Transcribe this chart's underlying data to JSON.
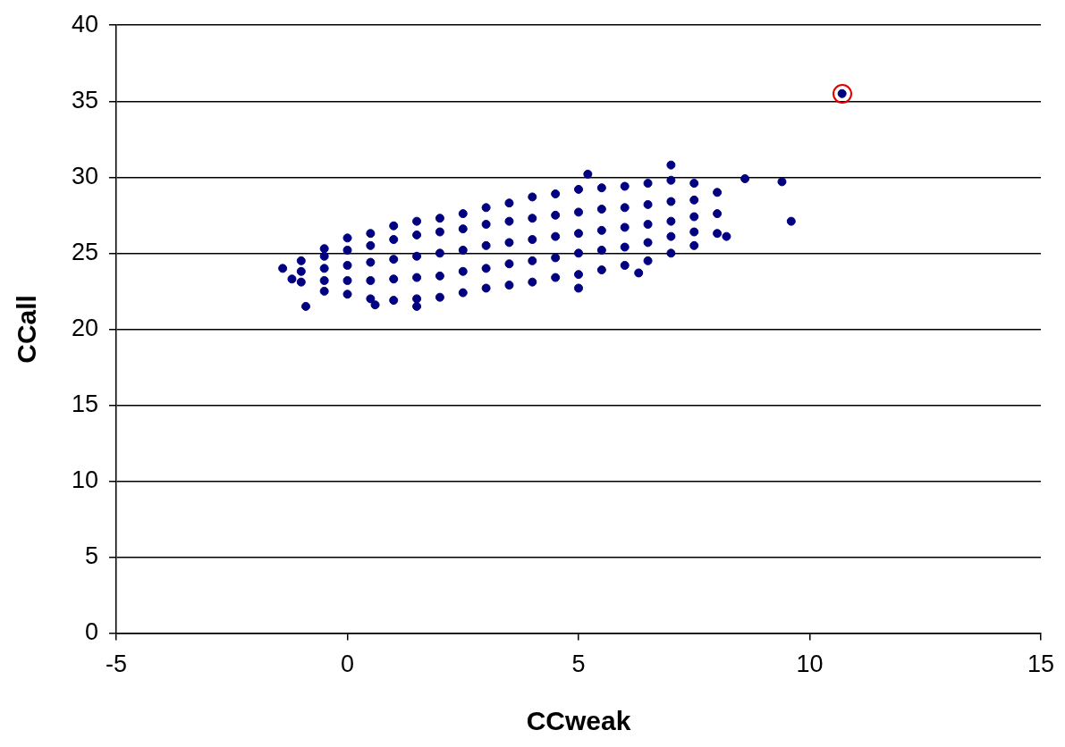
{
  "chart_data": {
    "type": "scatter",
    "xlabel": "CCweak",
    "ylabel": "CCall",
    "xlim": [
      -5,
      15
    ],
    "xticks": [
      -5,
      0,
      5,
      10,
      15
    ],
    "ylim": [
      0,
      40
    ],
    "yticks": [
      0,
      5,
      10,
      15,
      20,
      25,
      30,
      35,
      40
    ],
    "grid": "y",
    "legend": false,
    "marker": "circle",
    "series": [
      {
        "color": "#000080",
        "x": [
          -1,
          -1,
          -1,
          -0.5,
          -0.5,
          -0.5,
          -0.5,
          -0.5,
          0,
          0,
          0,
          0,
          0,
          0.5,
          0.5,
          0.5,
          0.5,
          0.5,
          1,
          1,
          1,
          1,
          1,
          1.5,
          1.5,
          1.5,
          1.5,
          1.5,
          2,
          2,
          2,
          2,
          2,
          2.5,
          2.5,
          2.5,
          2.5,
          2.5,
          3,
          3,
          3,
          3,
          3,
          3.5,
          3.5,
          3.5,
          3.5,
          3.5,
          4,
          4,
          4,
          4,
          4,
          4.5,
          4.5,
          4.5,
          4.5,
          4.5,
          5,
          5,
          5,
          5,
          5,
          5.5,
          5.5,
          5.5,
          5.5,
          5.5,
          6,
          6,
          6,
          6,
          6,
          6.5,
          6.5,
          6.5,
          6.5,
          6.5,
          7,
          7,
          7,
          7,
          7,
          7.5,
          7.5,
          7.5,
          7.5,
          7.5,
          8,
          8,
          8,
          -1.4,
          -0.9,
          -1.2,
          0.6,
          1.5,
          5.2,
          7,
          8.2,
          8.6,
          9.4,
          9.6,
          5,
          6.3,
          10.7
        ],
        "values": [
          23.1,
          23.8,
          24.5,
          22.5,
          23.2,
          24.0,
          24.8,
          25.3,
          22.3,
          23.2,
          24.2,
          25.2,
          26.0,
          22.0,
          23.2,
          24.4,
          25.5,
          26.3,
          21.9,
          23.3,
          24.6,
          25.9,
          26.8,
          22.0,
          23.4,
          24.8,
          26.2,
          27.1,
          22.1,
          23.5,
          25.0,
          26.4,
          27.3,
          22.4,
          23.8,
          25.2,
          26.6,
          27.6,
          22.7,
          24.0,
          25.5,
          26.9,
          28.0,
          22.9,
          24.3,
          25.7,
          27.1,
          28.3,
          23.1,
          24.5,
          25.9,
          27.3,
          28.7,
          23.4,
          24.7,
          26.1,
          27.5,
          28.9,
          23.6,
          25.0,
          26.3,
          27.7,
          29.2,
          23.9,
          25.2,
          26.5,
          27.9,
          29.3,
          24.2,
          25.4,
          26.7,
          28.0,
          29.4,
          24.5,
          25.7,
          26.9,
          28.2,
          29.6,
          25.0,
          26.1,
          27.1,
          28.4,
          29.8,
          25.5,
          26.4,
          27.4,
          28.5,
          29.6,
          26.3,
          27.6,
          29.0,
          24.0,
          21.5,
          23.3,
          21.6,
          21.5,
          30.2,
          30.8,
          26.1,
          29.9,
          29.7,
          27.1,
          22.7,
          23.7,
          35.5
        ]
      }
    ]
  }
}
